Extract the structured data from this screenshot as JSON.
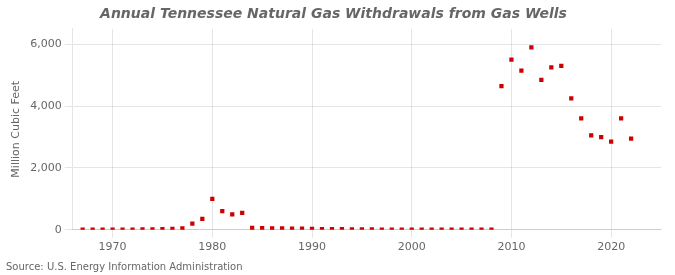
{
  "chart_data": {
    "type": "scatter",
    "title": "Annual Tennessee Natural Gas Withdrawals from Gas Wells",
    "ylabel": "Million Cubic Feet",
    "source": "Source: U.S. Energy Information Administration",
    "x": [
      1967,
      1968,
      1969,
      1970,
      1971,
      1972,
      1973,
      1974,
      1975,
      1976,
      1977,
      1978,
      1979,
      1980,
      1981,
      1982,
      1983,
      1984,
      1985,
      1986,
      1987,
      1988,
      1989,
      1990,
      1991,
      1992,
      1993,
      1994,
      1995,
      1996,
      1997,
      1998,
      1999,
      2000,
      2001,
      2002,
      2003,
      2004,
      2005,
      2006,
      2007,
      2008,
      2009,
      2010,
      2011,
      2012,
      2013,
      2014,
      2015,
      2016,
      2017,
      2018,
      2019,
      2020,
      2021,
      2022
    ],
    "values": [
      2,
      2,
      2,
      3,
      5,
      8,
      10,
      15,
      20,
      30,
      50,
      200,
      350,
      1000,
      600,
      500,
      550,
      60,
      55,
      50,
      45,
      40,
      35,
      30,
      25,
      20,
      18,
      15,
      12,
      10,
      8,
      7,
      6,
      5,
      5,
      5,
      5,
      5,
      5,
      5,
      5,
      5,
      4650,
      5500,
      5150,
      5900,
      4850,
      5250,
      5300,
      4250,
      3600,
      3050,
      3000,
      2850,
      3600,
      2950
    ],
    "color": "#cc0000",
    "marker": "square",
    "xlim": [
      1966,
      2025
    ],
    "xticks": [
      1970,
      1980,
      1990,
      2000,
      2010,
      2020
    ],
    "ylim": [
      0,
      6500
    ],
    "yticks": [
      0,
      {
        "value": 2000,
        "label": "2,000"
      },
      {
        "value": 4000,
        "label": "4,000"
      },
      {
        "value": 6000,
        "label": "6,000"
      }
    ],
    "grid": true
  }
}
